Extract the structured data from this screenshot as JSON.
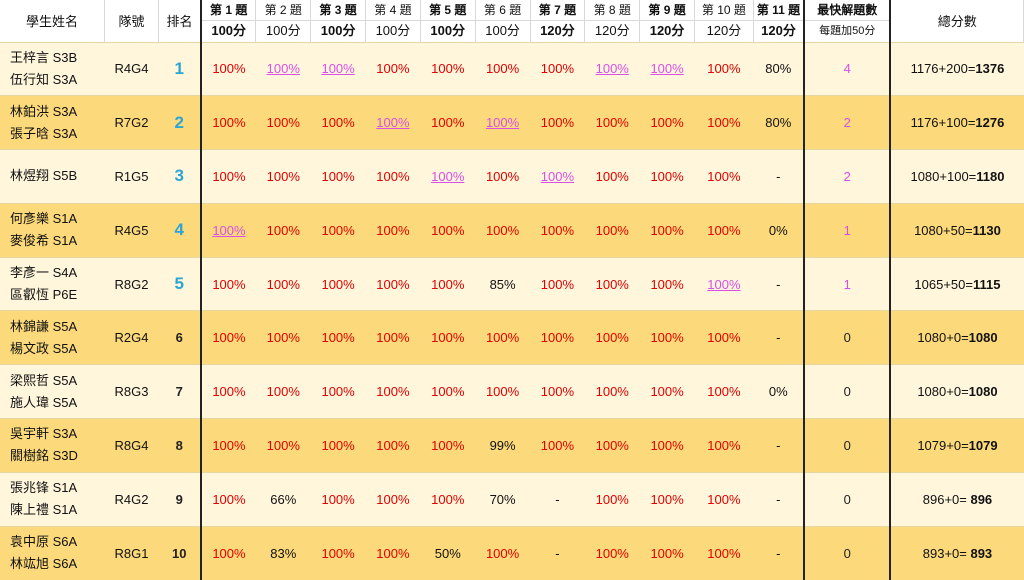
{
  "headers": {
    "name": "學生姓名",
    "team": "隊號",
    "rank": "排名",
    "questions": [
      {
        "label": "第 1 題",
        "points": "100分",
        "bold": true
      },
      {
        "label": "第 2 題",
        "points": "100分",
        "bold": false
      },
      {
        "label": "第 3 題",
        "points": "100分",
        "bold": true
      },
      {
        "label": "第 4 題",
        "points": "100分",
        "bold": false
      },
      {
        "label": "第 5 題",
        "points": "100分",
        "bold": true
      },
      {
        "label": "第 6 題",
        "points": "100分",
        "bold": false
      },
      {
        "label": "第 7 題",
        "points": "120分",
        "bold": true
      },
      {
        "label": "第 8 題",
        "points": "120分",
        "bold": false
      },
      {
        "label": "第 9 題",
        "points": "120分",
        "bold": true
      },
      {
        "label": "第 10 題",
        "points": "120分",
        "bold": false
      },
      {
        "label": "第 11 題",
        "points": "120分",
        "bold": true
      }
    ],
    "fastest": "最快解題數",
    "fastest_sub": "每題加50分",
    "total": "總分數"
  },
  "colors": {
    "score_red": "#e00000",
    "fastest_pink": "#d94fe6",
    "rank_blue": "#2aa6d6",
    "row_light": "#fff6dc",
    "row_dark": "#fcd97a"
  },
  "rows": [
    {
      "names": [
        "王梓言 S3B",
        "伍行知 S3A"
      ],
      "team": "R4G4",
      "rank": "1",
      "scores": [
        "100%",
        "100%",
        "100%",
        "100%",
        "100%",
        "100%",
        "100%",
        "100%",
        "100%",
        "100%",
        "80%"
      ],
      "fast": [
        false,
        true,
        true,
        false,
        false,
        false,
        false,
        true,
        true,
        false,
        false
      ],
      "fastest": "4",
      "total_base": "1176+200=",
      "total": "1376"
    },
    {
      "names": [
        "林鉑洪 S3A",
        "張子晗 S3A"
      ],
      "team": "R7G2",
      "rank": "2",
      "scores": [
        "100%",
        "100%",
        "100%",
        "100%",
        "100%",
        "100%",
        "100%",
        "100%",
        "100%",
        "100%",
        "80%"
      ],
      "fast": [
        false,
        false,
        false,
        true,
        false,
        true,
        false,
        false,
        false,
        false,
        false
      ],
      "fastest": "2",
      "total_base": "1176+100=",
      "total": "1276"
    },
    {
      "names": [
        "林煜翔 S5B"
      ],
      "team": "R1G5",
      "rank": "3",
      "scores": [
        "100%",
        "100%",
        "100%",
        "100%",
        "100%",
        "100%",
        "100%",
        "100%",
        "100%",
        "100%",
        "-"
      ],
      "fast": [
        false,
        false,
        false,
        false,
        true,
        false,
        true,
        false,
        false,
        false,
        false
      ],
      "fastest": "2",
      "total_base": "1080+100=",
      "total": "1180"
    },
    {
      "names": [
        "何彥樂 S1A",
        "麥俊希 S1A"
      ],
      "team": "R4G5",
      "rank": "4",
      "scores": [
        "100%",
        "100%",
        "100%",
        "100%",
        "100%",
        "100%",
        "100%",
        "100%",
        "100%",
        "100%",
        "0%"
      ],
      "fast": [
        true,
        false,
        false,
        false,
        false,
        false,
        false,
        false,
        false,
        false,
        false
      ],
      "fastest": "1",
      "total_base": "1080+50=",
      "total": "1130"
    },
    {
      "names": [
        "李彥一 S4A",
        "區叡恆 P6E"
      ],
      "team": "R8G2",
      "rank": "5",
      "scores": [
        "100%",
        "100%",
        "100%",
        "100%",
        "100%",
        "85%",
        "100%",
        "100%",
        "100%",
        "100%",
        "-"
      ],
      "fast": [
        false,
        false,
        false,
        false,
        false,
        false,
        false,
        false,
        false,
        true,
        false
      ],
      "fastest": "1",
      "total_base": "1065+50=",
      "total": "1115"
    },
    {
      "names": [
        "林錦謙 S5A",
        "楊文政 S5A"
      ],
      "team": "R2G4",
      "rank": "6",
      "scores": [
        "100%",
        "100%",
        "100%",
        "100%",
        "100%",
        "100%",
        "100%",
        "100%",
        "100%",
        "100%",
        "-"
      ],
      "fast": [
        false,
        false,
        false,
        false,
        false,
        false,
        false,
        false,
        false,
        false,
        false
      ],
      "fastest": "0",
      "total_base": "1080+0=",
      "total": "1080"
    },
    {
      "names": [
        "梁熙哲 S5A",
        "施人瑋 S5A"
      ],
      "team": "R8G3",
      "rank": "7",
      "scores": [
        "100%",
        "100%",
        "100%",
        "100%",
        "100%",
        "100%",
        "100%",
        "100%",
        "100%",
        "100%",
        "0%"
      ],
      "fast": [
        false,
        false,
        false,
        false,
        false,
        false,
        false,
        false,
        false,
        false,
        false
      ],
      "fastest": "0",
      "total_base": "1080+0=",
      "total": "1080"
    },
    {
      "names": [
        "吳宇軒 S3A",
        "關樹銘 S3D"
      ],
      "team": "R8G4",
      "rank": "8",
      "scores": [
        "100%",
        "100%",
        "100%",
        "100%",
        "100%",
        "99%",
        "100%",
        "100%",
        "100%",
        "100%",
        "-"
      ],
      "fast": [
        false,
        false,
        false,
        false,
        false,
        false,
        false,
        false,
        false,
        false,
        false
      ],
      "fastest": "0",
      "total_base": "1079+0=",
      "total": "1079"
    },
    {
      "names": [
        "張兆锋 S1A",
        "陳上禮 S1A"
      ],
      "team": "R4G2",
      "rank": "9",
      "scores": [
        "100%",
        "66%",
        "100%",
        "100%",
        "100%",
        "70%",
        "-",
        "100%",
        "100%",
        "100%",
        "-"
      ],
      "fast": [
        false,
        false,
        false,
        false,
        false,
        false,
        false,
        false,
        false,
        false,
        false
      ],
      "fastest": "0",
      "total_base": "896+0=",
      "total": " 896"
    },
    {
      "names": [
        "袁中原 S6A",
        "林竑旭 S6A"
      ],
      "team": "R8G1",
      "rank": "10",
      "scores": [
        "100%",
        "83%",
        "100%",
        "100%",
        "50%",
        "100%",
        "-",
        "100%",
        "100%",
        "100%",
        "-"
      ],
      "fast": [
        false,
        false,
        false,
        false,
        false,
        false,
        false,
        false,
        false,
        false,
        false
      ],
      "fastest": "0",
      "total_base": "893+0=",
      "total": " 893"
    }
  ]
}
